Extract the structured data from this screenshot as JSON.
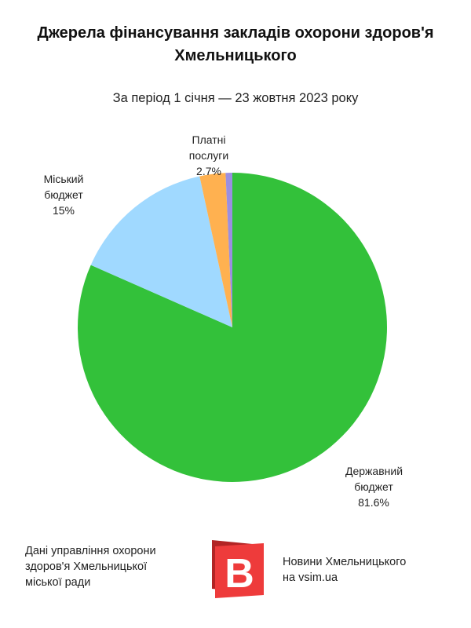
{
  "header": {
    "title": "Джерела фінансування закладів охорони здоров'я Хмельницького",
    "subtitle": "За період 1 січня — 23 жовтня 2023 року"
  },
  "chart_data": {
    "type": "pie",
    "slices": [
      {
        "label_lines": [
          "Державний",
          "бюджет",
          "81.6%"
        ],
        "value": 81.6,
        "color": "#33c13a"
      },
      {
        "label_lines": [
          "Міський",
          "бюджет",
          "15%"
        ],
        "value": 15.0,
        "color": "#a0d9ff"
      },
      {
        "label_lines": [
          "Платні",
          "послуги",
          "2.7%"
        ],
        "value": 2.7,
        "color": "#ffb150"
      },
      {
        "label_lines": [],
        "value": 0.7,
        "color": "#9b8fe0"
      }
    ],
    "start_angle": "12 o'clock",
    "direction": "clockwise"
  },
  "footer": {
    "source_lines": [
      "Дані управління охорони",
      "здоров'я Хмельницької",
      "міської ради"
    ],
    "brand_lines": [
      "Новини Хмельницького",
      "на vsim.ua"
    ],
    "logo_letter": "В",
    "logo_colors": {
      "front": "#ee3b3b",
      "back": "#b22424",
      "letter": "#ffffff"
    }
  }
}
